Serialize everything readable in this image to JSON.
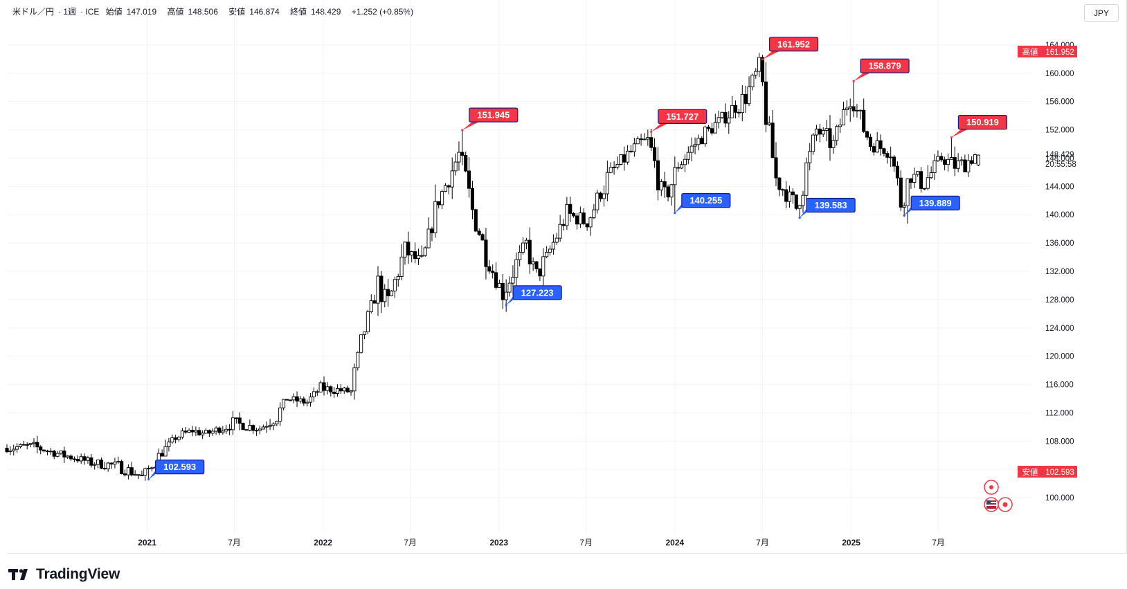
{
  "header": {
    "symbol": "米ドル／円",
    "interval": "1週",
    "exchange": "ICE",
    "open_label": "始値",
    "open": "147.019",
    "high_label": "高値",
    "high": "148.506",
    "low_label": "安値",
    "low": "146.874",
    "close_label": "終値",
    "close": "148.429",
    "change": "+1.252 (+0.85%)"
  },
  "currency": "JPY",
  "logo_text": "TradingView",
  "price_scale": {
    "ticks": [
      100,
      104,
      108,
      112,
      116,
      120,
      124,
      128,
      132,
      136,
      140,
      144,
      148,
      152,
      156,
      160,
      164
    ],
    "tick_labels": [
      "100.000",
      "104.000",
      "108.000",
      "112.000",
      "116.000",
      "120.000",
      "124.000",
      "128.000",
      "132.000",
      "136.000",
      "140.000",
      "144.000",
      "148.000",
      "152.000",
      "156.000",
      "160.000",
      "164.000"
    ],
    "current_price": "148.429",
    "countdown": "20:55:58",
    "high_label": "高値",
    "high_value": "161.952",
    "low_label": "安値",
    "low_value": "102.593",
    "colors": {
      "high": "#f23645",
      "low": "#f23645"
    }
  },
  "time_axis": {
    "labels": [
      {
        "t": "2021-01-01",
        "text": "2021",
        "bold": true
      },
      {
        "t": "2021-07-01",
        "text": "7月",
        "bold": false
      },
      {
        "t": "2022-01-01",
        "text": "2022",
        "bold": true
      },
      {
        "t": "2022-07-01",
        "text": "7月",
        "bold": false
      },
      {
        "t": "2023-01-01",
        "text": "2023",
        "bold": true
      },
      {
        "t": "2023-07-01",
        "text": "7月",
        "bold": false
      },
      {
        "t": "2024-01-01",
        "text": "2024",
        "bold": true
      },
      {
        "t": "2024-07-01",
        "text": "7月",
        "bold": false
      },
      {
        "t": "2025-01-01",
        "text": "2025",
        "bold": true
      },
      {
        "t": "2025-07-01",
        "text": "7月",
        "bold": false
      }
    ]
  },
  "chart_data": {
    "type": "candlestick",
    "interval": "1週",
    "y_range": [
      96,
      168
    ],
    "x_range": [
      "2020-03-16",
      "2025-10-13"
    ],
    "grid": true,
    "anchors": [
      [
        "2020-03-16",
        107.0
      ],
      [
        "2020-05-11",
        107.3
      ],
      [
        "2020-07-20",
        106.0
      ],
      [
        "2020-09-14",
        105.0
      ],
      [
        "2020-11-09",
        104.5
      ],
      [
        "2020-12-28",
        103.0
      ],
      [
        "2021-03-08",
        108.5
      ],
      [
        "2021-04-12",
        109.5
      ],
      [
        "2021-05-10",
        109.0
      ],
      [
        "2021-07-05",
        110.5
      ],
      [
        "2021-08-30",
        109.8
      ],
      [
        "2021-10-04",
        111.5
      ],
      [
        "2021-10-25",
        114.0
      ],
      [
        "2021-12-06",
        113.5
      ],
      [
        "2022-01-03",
        115.5
      ],
      [
        "2022-03-07",
        115.0
      ],
      [
        "2022-03-28",
        122.0
      ],
      [
        "2022-05-02",
        130.0
      ],
      [
        "2022-05-23",
        127.5
      ],
      [
        "2022-06-27",
        135.0
      ],
      [
        "2022-08-01",
        133.0
      ],
      [
        "2022-09-05",
        142.0
      ],
      [
        "2022-10-17",
        148.5
      ],
      [
        "2022-11-14",
        140.5
      ],
      [
        "2022-12-19",
        133.0
      ],
      [
        "2023-01-16",
        129.0
      ],
      [
        "2023-03-06",
        136.0
      ],
      [
        "2023-03-27",
        131.0
      ],
      [
        "2023-05-29",
        140.0
      ],
      [
        "2023-07-10",
        139.0
      ],
      [
        "2023-08-28",
        146.0
      ],
      [
        "2023-10-23",
        149.8
      ],
      [
        "2023-11-13",
        150.5
      ],
      [
        "2023-12-18",
        142.0
      ],
      [
        "2024-01-15",
        147.0
      ],
      [
        "2024-02-19",
        150.0
      ],
      [
        "2024-04-22",
        154.0
      ],
      [
        "2024-06-03",
        156.5
      ],
      [
        "2024-07-01",
        161.0
      ],
      [
        "2024-08-05",
        145.0
      ],
      [
        "2024-09-16",
        141.0
      ],
      [
        "2024-10-28",
        152.0
      ],
      [
        "2024-12-02",
        150.0
      ],
      [
        "2025-01-06",
        157.0
      ],
      [
        "2025-02-17",
        150.0
      ],
      [
        "2025-03-31",
        149.0
      ],
      [
        "2025-04-21",
        142.0
      ],
      [
        "2025-05-12",
        145.5
      ],
      [
        "2025-06-09",
        144.5
      ],
      [
        "2025-07-14",
        148.0
      ],
      [
        "2025-08-11",
        147.0
      ],
      [
        "2025-09-01",
        147.2
      ],
      [
        "2025-09-22",
        148.4
      ]
    ],
    "last_bar": {
      "open": 147.019,
      "high": 148.506,
      "low": 146.874,
      "close": 148.429
    },
    "annotations": [
      {
        "kind": "high",
        "t": "2022-10-17",
        "value": 151.945,
        "label": "151.945"
      },
      {
        "kind": "high",
        "t": "2023-11-13",
        "value": 151.727,
        "label": "151.727"
      },
      {
        "kind": "high",
        "t": "2024-07-01",
        "value": 161.952,
        "label": "161.952"
      },
      {
        "kind": "high",
        "t": "2025-01-06",
        "value": 158.879,
        "label": "158.879"
      },
      {
        "kind": "high",
        "t": "2025-07-28",
        "value": 150.919,
        "label": "150.919"
      },
      {
        "kind": "low",
        "t": "2021-01-04",
        "value": 102.593,
        "label": "102.593"
      },
      {
        "kind": "low",
        "t": "2023-01-16",
        "value": 127.223,
        "label": "127.223"
      },
      {
        "kind": "low",
        "t": "2024-01-01",
        "value": 140.255,
        "label": "140.255"
      },
      {
        "kind": "low",
        "t": "2024-09-16",
        "value": 139.583,
        "label": "139.583"
      },
      {
        "kind": "low",
        "t": "2025-04-21",
        "value": 139.889,
        "label": "139.889"
      }
    ],
    "colors": {
      "high_tag": "#f23645",
      "low_tag": "#2962ff",
      "candle_up": "#ffffff",
      "candle_down": "#000000",
      "wick": "#000000"
    }
  },
  "events": {
    "icons": [
      "event-dot-icon",
      "us-flag-icon",
      "jp-flag-icon"
    ]
  }
}
